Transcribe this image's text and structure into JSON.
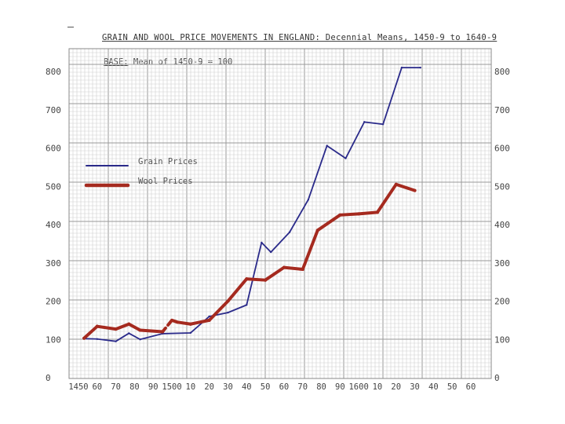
{
  "chart_data": {
    "type": "line",
    "title": "GRAIN AND WOOL PRICE MOVEMENTS IN ENGLAND: Decennial Means, 1450-9 to 1640-9",
    "subtitle_key": "BASE:",
    "subtitle_rest": " Mean of 1450-9 = 100",
    "xlabel": "",
    "ylabel": "",
    "ylim": [
      0,
      800
    ],
    "xlim": [
      1450,
      1660
    ],
    "grid": true,
    "legend_position": "upper-left",
    "y_ticks": [
      {
        "value": 0,
        "label": "0"
      },
      {
        "value": 100,
        "label": "100"
      },
      {
        "value": 200,
        "label": "200"
      },
      {
        "value": 300,
        "label": "300"
      },
      {
        "value": 400,
        "label": "400"
      },
      {
        "value": 500,
        "label": "500"
      },
      {
        "value": 600,
        "label": "600"
      },
      {
        "value": 700,
        "label": "700"
      },
      {
        "value": 800,
        "label": "800"
      }
    ],
    "x_ticks": [
      {
        "value": 1450,
        "label": "1450"
      },
      {
        "value": 1460,
        "label": "60"
      },
      {
        "value": 1470,
        "label": "70"
      },
      {
        "value": 1480,
        "label": "80"
      },
      {
        "value": 1490,
        "label": "90"
      },
      {
        "value": 1500,
        "label": "1500"
      },
      {
        "value": 1510,
        "label": "10"
      },
      {
        "value": 1520,
        "label": "20"
      },
      {
        "value": 1530,
        "label": "30"
      },
      {
        "value": 1540,
        "label": "40"
      },
      {
        "value": 1550,
        "label": "50"
      },
      {
        "value": 1560,
        "label": "60"
      },
      {
        "value": 1570,
        "label": "70"
      },
      {
        "value": 1580,
        "label": "80"
      },
      {
        "value": 1590,
        "label": "90"
      },
      {
        "value": 1600,
        "label": "1600"
      },
      {
        "value": 1610,
        "label": "10"
      },
      {
        "value": 1620,
        "label": "20"
      },
      {
        "value": 1630,
        "label": "30"
      },
      {
        "value": 1640,
        "label": "40"
      },
      {
        "value": 1650,
        "label": "50"
      },
      {
        "value": 1660,
        "label": "60"
      }
    ],
    "series": [
      {
        "name": "Grain Prices",
        "color": "#2a2a8a",
        "stroke": "thin",
        "points": [
          [
            1453,
            102
          ],
          [
            1460,
            101
          ],
          [
            1470,
            95
          ],
          [
            1477,
            116
          ],
          [
            1483,
            100
          ],
          [
            1495,
            115
          ],
          [
            1510,
            117
          ],
          [
            1520,
            160
          ],
          [
            1530,
            170
          ],
          [
            1540,
            190
          ],
          [
            1548,
            353
          ],
          [
            1553,
            328
          ],
          [
            1563,
            380
          ],
          [
            1573,
            465
          ],
          [
            1583,
            606
          ],
          [
            1593,
            573
          ],
          [
            1603,
            668
          ],
          [
            1613,
            662
          ],
          [
            1623,
            810
          ],
          [
            1633,
            810
          ]
        ]
      },
      {
        "name": "Wool Prices",
        "color": "#a52a1f",
        "stroke": "thick",
        "points": [
          [
            1453,
            103
          ],
          [
            1460,
            134
          ],
          [
            1470,
            127
          ],
          [
            1477,
            140
          ],
          [
            1483,
            124
          ],
          [
            1495,
            120
          ],
          [
            1500,
            150
          ],
          [
            1503,
            145
          ],
          [
            1510,
            140
          ],
          [
            1520,
            150
          ],
          [
            1530,
            200
          ],
          [
            1540,
            258
          ],
          [
            1550,
            255
          ],
          [
            1560,
            288
          ],
          [
            1570,
            283
          ],
          [
            1578,
            385
          ],
          [
            1590,
            425
          ],
          [
            1600,
            428
          ],
          [
            1610,
            432
          ],
          [
            1620,
            505
          ],
          [
            1630,
            489
          ]
        ],
        "dotted_segments": [
          [
            1495,
            1503
          ]
        ]
      }
    ]
  }
}
